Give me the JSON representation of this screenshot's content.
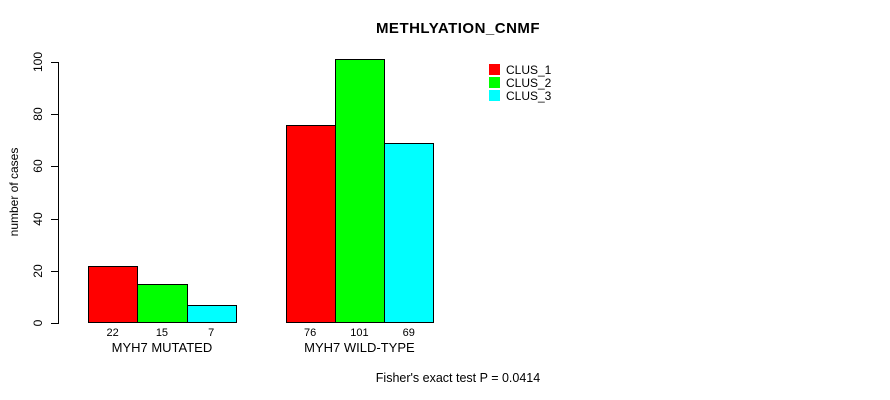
{
  "chart_data": {
    "type": "bar",
    "title": "METHLYATION_CNMF",
    "ylabel": "number of cases",
    "xlabel": "",
    "categories": [
      "MYH7 MUTATED",
      "MYH7 WILD-TYPE"
    ],
    "series": [
      {
        "name": "CLUS_1",
        "color": "#ff0000",
        "values": [
          22,
          76
        ]
      },
      {
        "name": "CLUS_2",
        "color": "#00ff00",
        "values": [
          15,
          101
        ]
      },
      {
        "name": "CLUS_3",
        "color": "#00ffff",
        "values": [
          7,
          69
        ]
      }
    ],
    "ylim": [
      0,
      100
    ],
    "yticks": [
      0,
      20,
      40,
      60,
      80,
      100
    ],
    "grid": false,
    "legend_position": "top-right",
    "bar_value_labels": [
      [
        22,
        15,
        7
      ],
      [
        76,
        101,
        69
      ]
    ],
    "annotation": "Fisher's exact test P = 0.0414"
  }
}
